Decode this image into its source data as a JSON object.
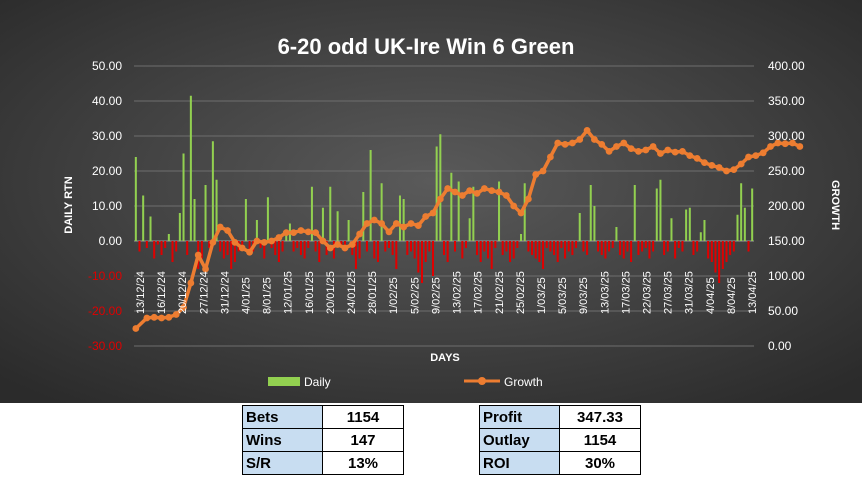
{
  "chart_data": {
    "type": "bar+line",
    "title": "6-20 odd UK-Ire Win 6 Green",
    "xlabel": "DAYS",
    "ylabel": "DAILY RTN",
    "y2label": "GROWTH",
    "ylim": [
      -30,
      50
    ],
    "y2lim": [
      0,
      400
    ],
    "yticks": [
      "50.00",
      "40.00",
      "30.00",
      "20.00",
      "10.00",
      "0.00",
      "-10.00",
      "-20.00",
      "-30.00"
    ],
    "y2ticks": [
      "400.00",
      "350.00",
      "300.00",
      "250.00",
      "200.00",
      "150.00",
      "100.00",
      "50.00",
      "0.00"
    ],
    "x_tick_labels": [
      "13/12/24",
      "16/12/24",
      "20/12/24",
      "27/12/24",
      "31/12/24",
      "4/01/25",
      "8/01/25",
      "12/01/25",
      "16/01/25",
      "20/01/25",
      "24/01/25",
      "28/01/25",
      "1/02/25",
      "5/02/25",
      "9/02/25",
      "13/02/25",
      "17/02/25",
      "21/02/25",
      "25/02/25",
      "1/03/25",
      "5/03/25",
      "9/03/25",
      "13/03/25",
      "17/03/25",
      "22/03/25",
      "27/03/25",
      "31/03/25",
      "4/04/25",
      "8/04/25",
      "13/04/25"
    ],
    "grid": true,
    "legend_position": "bottom",
    "series": [
      {
        "name": "Daily",
        "type": "bar",
        "axis": "left",
        "color": "#92d050",
        "values": [
          24,
          -3,
          13,
          -2,
          7,
          -5,
          -1,
          -4,
          -2,
          2,
          -6,
          -3,
          8,
          25,
          -4,
          41.5,
          12,
          -8,
          -5,
          16,
          -2,
          28.5,
          17.5,
          -3,
          -5,
          -4,
          -8,
          -6,
          -3,
          -2,
          12,
          -4,
          -3,
          6,
          -2,
          -5,
          12.5,
          -2,
          -4,
          -6,
          -3,
          2,
          5,
          -3,
          -2,
          -4,
          -5,
          -2,
          15.5,
          -3,
          -6,
          9.5,
          -4,
          15.5,
          -5,
          8.5,
          -2,
          -3,
          6,
          -4,
          -8,
          -5,
          14,
          -3,
          26,
          -5,
          -6,
          16.5,
          -3,
          -2,
          -4,
          -8,
          13,
          12,
          -4,
          -3,
          -5,
          -9,
          -12,
          -6,
          -3,
          -10,
          27,
          30.5,
          -4,
          -6,
          19.5,
          -3,
          17,
          -5,
          -2,
          6.5,
          15.5,
          -4,
          -6,
          -3,
          -5,
          -8,
          -2,
          17,
          -4,
          -3,
          -6,
          -5,
          -2,
          2,
          16.5,
          -3,
          -4,
          -5,
          -6,
          -8,
          -2,
          -3,
          -4,
          -6,
          -2,
          -5,
          -3,
          -4,
          -2,
          8,
          -3,
          -4,
          16,
          10,
          -3,
          -4,
          -5,
          -3,
          -2,
          4,
          -4,
          -5,
          -3,
          -6,
          16,
          -4,
          -3,
          -2,
          -5,
          -3,
          15,
          17.5,
          -4,
          -3,
          6.5,
          -5,
          -2,
          -3,
          9,
          9.5,
          -4,
          -3,
          2.5,
          6,
          -5,
          -6,
          -9,
          -12,
          -8,
          -6,
          -4,
          -3,
          7.5,
          16.5,
          9.5,
          -3,
          15
        ]
      },
      {
        "name": "Growth",
        "type": "line",
        "axis": "right",
        "color": "#ed7d31",
        "x": [
          0,
          3,
          5,
          7,
          9,
          11,
          13,
          15,
          17,
          19,
          21,
          23,
          25,
          27,
          29,
          31,
          33,
          35,
          37,
          39,
          41,
          43,
          45,
          47,
          49,
          51,
          53,
          55,
          57,
          59,
          61,
          63,
          65,
          67,
          69,
          71,
          73,
          75,
          77,
          79,
          81,
          83,
          85,
          87,
          89,
          91,
          93,
          95,
          97,
          99,
          101,
          103,
          105,
          107,
          109,
          111,
          113,
          115,
          117,
          119,
          121,
          123,
          125,
          127,
          129,
          131,
          133,
          135,
          137,
          139,
          141,
          143,
          145,
          147,
          149,
          151,
          153,
          155,
          157,
          159,
          161,
          163,
          165,
          167,
          169,
          171,
          173,
          175,
          177,
          179,
          181
        ],
        "values": [
          25,
          40,
          41,
          40,
          41,
          45,
          55,
          90,
          130,
          110,
          148,
          170,
          165,
          148,
          140,
          134,
          150,
          148,
          150,
          155,
          162,
          162,
          165,
          163,
          162,
          150,
          140,
          145,
          140,
          145,
          160,
          175,
          180,
          175,
          163,
          175,
          170,
          175,
          172,
          185,
          190,
          210,
          225,
          220,
          215,
          222,
          218,
          225,
          222,
          220,
          215,
          200,
          190,
          210,
          245,
          250,
          270,
          290,
          288,
          290,
          295,
          308,
          295,
          288,
          278,
          285,
          290,
          282,
          278,
          280,
          285,
          275,
          280,
          277,
          278,
          272,
          268,
          262,
          258,
          255,
          250,
          252,
          260,
          270,
          272,
          276,
          285,
          290,
          289,
          290,
          285
        ]
      }
    ]
  },
  "stats_left": [
    {
      "label": "Bets",
      "value": "1154"
    },
    {
      "label": "Wins",
      "value": "147"
    },
    {
      "label": "S/R",
      "value": "13%"
    }
  ],
  "stats_right": [
    {
      "label": "Profit",
      "value": "347.33"
    },
    {
      "label": "Outlay",
      "value": "1154"
    },
    {
      "label": "ROI",
      "value": "30%"
    }
  ]
}
